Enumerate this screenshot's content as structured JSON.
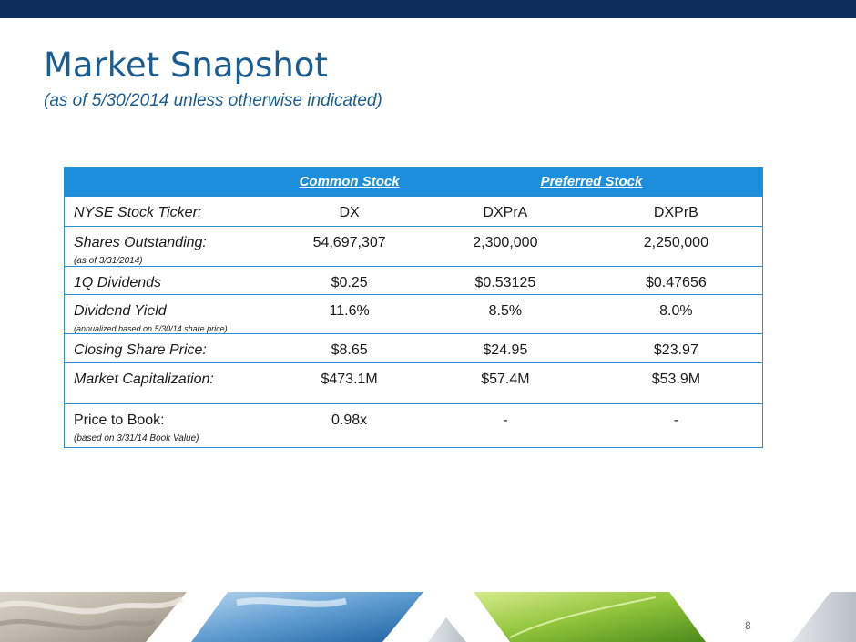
{
  "slide": {
    "title": "Market Snapshot",
    "subtitle": "(as of 5/30/2014 unless otherwise indicated)",
    "page_number": "8"
  },
  "table": {
    "headers": {
      "blank": "",
      "common": "Common Stock",
      "preferred": "Preferred Stock"
    },
    "rows": [
      {
        "label": "NYSE Stock Ticker:",
        "note": "",
        "italic": true,
        "values": [
          "DX",
          "DXPrA",
          "DXPrB"
        ]
      },
      {
        "label": "Shares Outstanding:",
        "note": "(as of 3/31/2014)",
        "italic": true,
        "values": [
          "54,697,307",
          "2,300,000",
          "2,250,000"
        ]
      },
      {
        "label": "1Q Dividends",
        "note": "",
        "italic": true,
        "values": [
          "$0.25",
          "$0.53125",
          "$0.47656"
        ]
      },
      {
        "label": "Dividend Yield",
        "note": "(annualized based on 5/30/14 share price)",
        "italic": true,
        "values": [
          "11.6%",
          "8.5%",
          "8.0%"
        ]
      },
      {
        "label": "Closing Share Price:",
        "note": "",
        "italic": true,
        "values": [
          "$8.65",
          "$24.95",
          "$23.97"
        ]
      },
      {
        "label": "Market Capitalization:",
        "note": "",
        "italic": true,
        "values": [
          "$473.1M",
          "$57.4M",
          "$53.9M"
        ]
      },
      {
        "label": "Price to Book:",
        "note": "(based on  3/31/14 Book Value)",
        "italic": false,
        "values": [
          "0.98x",
          "-",
          "-"
        ]
      }
    ]
  },
  "colors": {
    "top_bar": "#0d2d5e",
    "title": "#1b5d91",
    "header_fill": "#1c8edb",
    "table_border": "#2a8fd3"
  },
  "footer_images": [
    "rope-image",
    "sky-image",
    "leaf-image"
  ]
}
